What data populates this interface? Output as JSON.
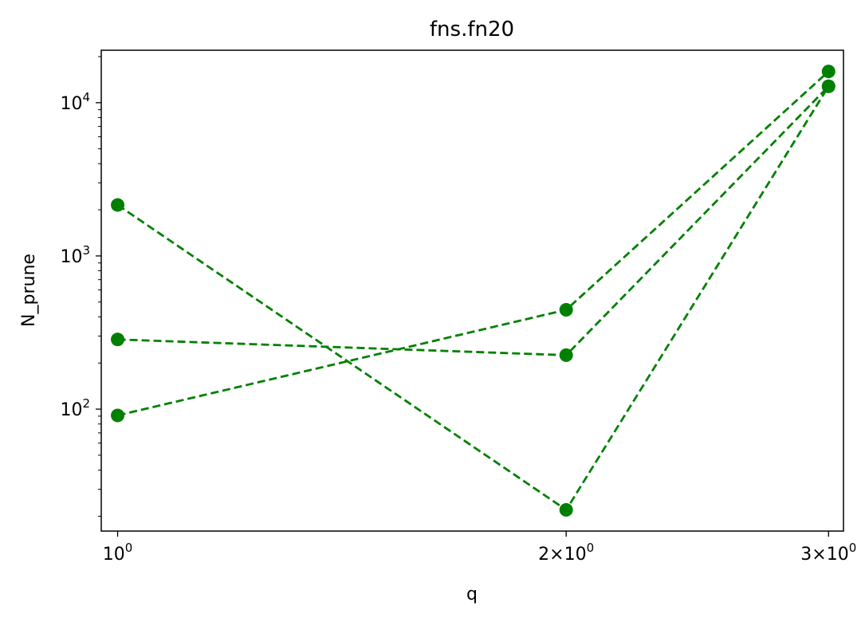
{
  "chart_data": {
    "type": "line",
    "title": "fns.fn20",
    "xlabel": "q",
    "ylabel": "N_prune",
    "x_scale": "log",
    "y_scale": "log",
    "xlim": [
      0.975,
      3.07
    ],
    "ylim": [
      16,
      22000
    ],
    "grid": false,
    "color": "#008000",
    "line_style": "dashed",
    "marker": "circle",
    "x": [
      1,
      2,
      3
    ],
    "x_tick_labels": [
      {
        "base": "10",
        "exp": "0",
        "prefix": ""
      },
      {
        "base": "10",
        "exp": "0",
        "prefix": "2×"
      },
      {
        "base": "10",
        "exp": "0",
        "prefix": "3×"
      }
    ],
    "y_ticks": [
      {
        "value": 100,
        "base": "10",
        "exp": "2"
      },
      {
        "value": 1000,
        "base": "10",
        "exp": "3"
      },
      {
        "value": 10000,
        "base": "10",
        "exp": "4"
      }
    ],
    "series": [
      {
        "values": [
          2150,
          22,
          12800
        ]
      },
      {
        "values": [
          285,
          225,
          12800
        ]
      },
      {
        "values": [
          91,
          445,
          16000
        ]
      }
    ]
  }
}
